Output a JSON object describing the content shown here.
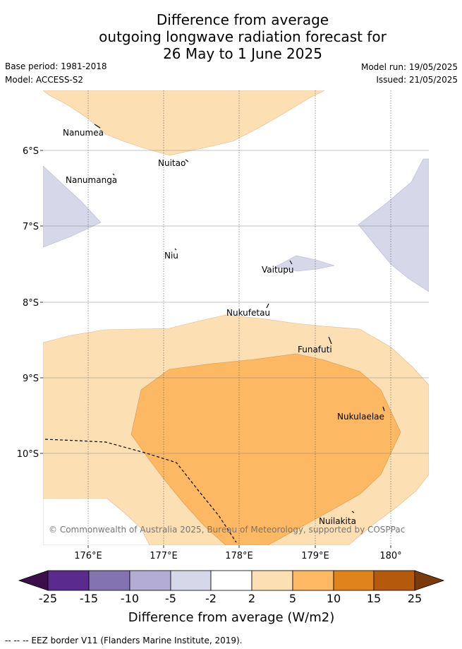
{
  "title_lines": [
    "Difference from average",
    "outgoing longwave radiation forecast for",
    "26 May to 1 June 2025"
  ],
  "meta": {
    "base_period": "Base period: 1981-2018",
    "model": "Model: ACCESS-S2",
    "model_run": "Model run: 19/05/2025",
    "issued": "Issued: 21/05/2025"
  },
  "axes": {
    "x_ticks": [
      "176°E",
      "177°E",
      "178°E",
      "179°E",
      "180°"
    ],
    "y_ticks": [
      "6°S",
      "7°S",
      "8°S",
      "9°S",
      "10°S"
    ]
  },
  "places": [
    {
      "name": "Nanumea"
    },
    {
      "name": "Nuitao"
    },
    {
      "name": "Nanumanga"
    },
    {
      "name": "Niu"
    },
    {
      "name": "Vaitupu"
    },
    {
      "name": "Nukufetau"
    },
    {
      "name": "Funafuti"
    },
    {
      "name": "Nukulaelae"
    },
    {
      "name": "Nuilakita"
    }
  ],
  "copyright": "© Commonwealth of Australia 2025, Bureau of Meteorology, supported by COSPPac",
  "colorbar": {
    "labels": [
      "-25",
      "-15",
      "-10",
      "-5",
      "-2",
      "2",
      "5",
      "10",
      "15",
      "25"
    ],
    "colors": [
      "#3b0f4a",
      "#5a2a8e",
      "#8373b0",
      "#b3acd4",
      "#d7d7ea",
      "#ffffff",
      "#fddfb4",
      "#fcb862",
      "#e0831a",
      "#b55a0d",
      "#7a3a0a"
    ],
    "label": "Difference from average (W/m2)"
  },
  "colors": {
    "light_orange": "#fddfb4",
    "orange": "#fcb862",
    "light_purple": "#d7d7ea"
  },
  "footnote": "--  --  -- EEZ border V11 (Flanders Marine Institute, 2019)."
}
